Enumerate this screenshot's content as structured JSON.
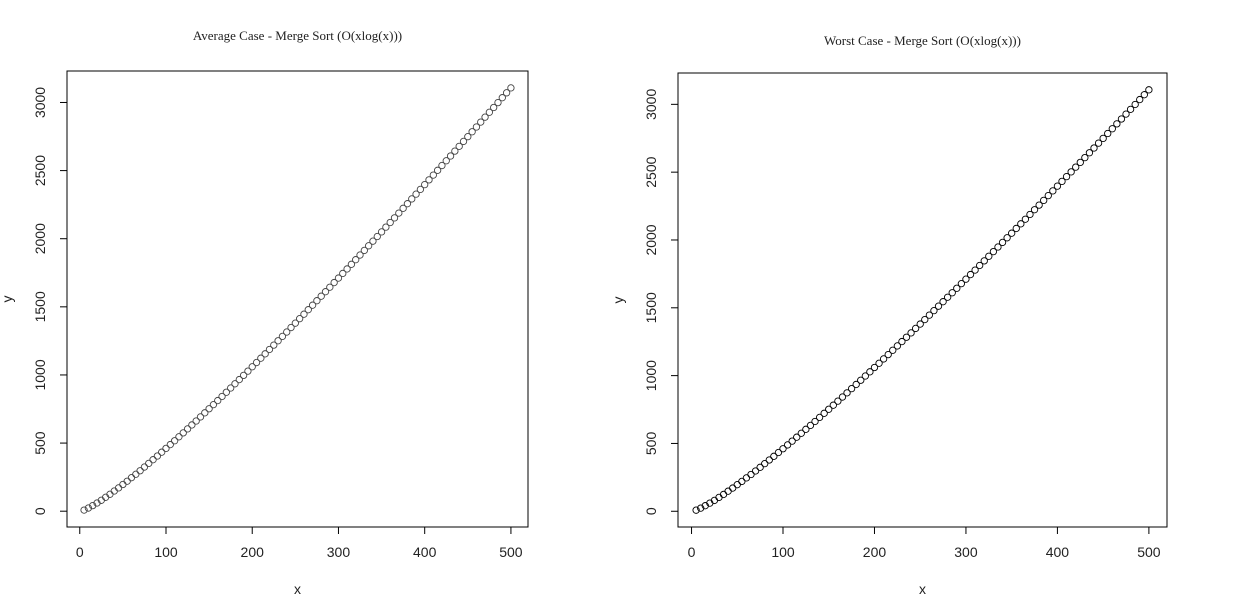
{
  "chart_data": [
    {
      "type": "scatter",
      "title": "Average Case - Merge Sort (O(xlog(x)))",
      "x_label": "x",
      "y_label": "y",
      "x": [
        5,
        10,
        15,
        20,
        25,
        30,
        35,
        40,
        45,
        50,
        55,
        60,
        65,
        70,
        75,
        80,
        85,
        90,
        95,
        100,
        105,
        110,
        115,
        120,
        125,
        130,
        135,
        140,
        145,
        150,
        155,
        160,
        165,
        170,
        175,
        180,
        185,
        190,
        195,
        200,
        205,
        210,
        215,
        220,
        225,
        230,
        235,
        240,
        245,
        250,
        255,
        260,
        265,
        270,
        275,
        280,
        285,
        290,
        295,
        300,
        305,
        310,
        315,
        320,
        325,
        330,
        335,
        340,
        345,
        350,
        355,
        360,
        365,
        370,
        375,
        380,
        385,
        390,
        395,
        400,
        405,
        410,
        415,
        420,
        425,
        430,
        435,
        440,
        445,
        450,
        455,
        460,
        465,
        470,
        475,
        480,
        485,
        490,
        495,
        500
      ],
      "y": [
        8,
        23,
        41,
        60,
        80,
        102,
        124,
        148,
        171,
        196,
        220,
        246,
        271,
        297,
        324,
        351,
        378,
        405,
        433,
        461,
        489,
        517,
        546,
        575,
        604,
        633,
        662,
        692,
        722,
        752,
        782,
        812,
        842,
        873,
        904,
        935,
        966,
        997,
        1028,
        1060,
        1091,
        1123,
        1155,
        1187,
        1219,
        1251,
        1283,
        1315,
        1348,
        1380,
        1413,
        1446,
        1479,
        1512,
        1545,
        1578,
        1611,
        1644,
        1678,
        1711,
        1745,
        1778,
        1812,
        1846,
        1880,
        1914,
        1948,
        1982,
        2016,
        2050,
        2085,
        2119,
        2153,
        2188,
        2223,
        2257,
        2292,
        2327,
        2362,
        2397,
        2432,
        2467,
        2502,
        2537,
        2572,
        2607,
        2643,
        2678,
        2714,
        2749,
        2785,
        2820,
        2856,
        2892,
        2928,
        2963,
        2999,
        3035,
        3071,
        3107
      ],
      "color": "#444444",
      "xlim": [
        -14.8,
        519.8
      ],
      "ylim": [
        -116,
        3231
      ],
      "xticks": [
        0,
        100,
        200,
        300,
        400,
        500
      ],
      "yticks": [
        0,
        500,
        1000,
        1500,
        2000,
        2500,
        3000
      ]
    },
    {
      "type": "scatter",
      "title": "Worst Case - Merge Sort (O(xlog(x)))",
      "x_label": "x",
      "y_label": "y",
      "x": [
        5,
        10,
        15,
        20,
        25,
        30,
        35,
        40,
        45,
        50,
        55,
        60,
        65,
        70,
        75,
        80,
        85,
        90,
        95,
        100,
        105,
        110,
        115,
        120,
        125,
        130,
        135,
        140,
        145,
        150,
        155,
        160,
        165,
        170,
        175,
        180,
        185,
        190,
        195,
        200,
        205,
        210,
        215,
        220,
        225,
        230,
        235,
        240,
        245,
        250,
        255,
        260,
        265,
        270,
        275,
        280,
        285,
        290,
        295,
        300,
        305,
        310,
        315,
        320,
        325,
        330,
        335,
        340,
        345,
        350,
        355,
        360,
        365,
        370,
        375,
        380,
        385,
        390,
        395,
        400,
        405,
        410,
        415,
        420,
        425,
        430,
        435,
        440,
        445,
        450,
        455,
        460,
        465,
        470,
        475,
        480,
        485,
        490,
        495,
        500
      ],
      "y": [
        8,
        23,
        41,
        60,
        80,
        102,
        124,
        148,
        171,
        196,
        220,
        246,
        271,
        297,
        324,
        351,
        378,
        405,
        433,
        461,
        489,
        517,
        546,
        575,
        604,
        633,
        662,
        692,
        722,
        752,
        782,
        812,
        842,
        873,
        904,
        935,
        966,
        997,
        1028,
        1060,
        1091,
        1123,
        1155,
        1187,
        1219,
        1251,
        1283,
        1315,
        1348,
        1380,
        1413,
        1446,
        1479,
        1512,
        1545,
        1578,
        1611,
        1644,
        1678,
        1711,
        1745,
        1778,
        1812,
        1846,
        1880,
        1914,
        1948,
        1982,
        2016,
        2050,
        2085,
        2119,
        2153,
        2188,
        2223,
        2257,
        2292,
        2327,
        2362,
        2397,
        2432,
        2467,
        2502,
        2537,
        2572,
        2607,
        2643,
        2678,
        2714,
        2749,
        2785,
        2820,
        2856,
        2892,
        2928,
        2963,
        2999,
        3035,
        3071,
        3107
      ],
      "color": "#000000",
      "xlim": [
        -14.8,
        519.8
      ],
      "ylim": [
        -116,
        3231
      ],
      "xticks": [
        0,
        100,
        200,
        300,
        400,
        500
      ],
      "yticks": [
        0,
        500,
        1000,
        1500,
        2000,
        2500,
        3000
      ]
    }
  ]
}
